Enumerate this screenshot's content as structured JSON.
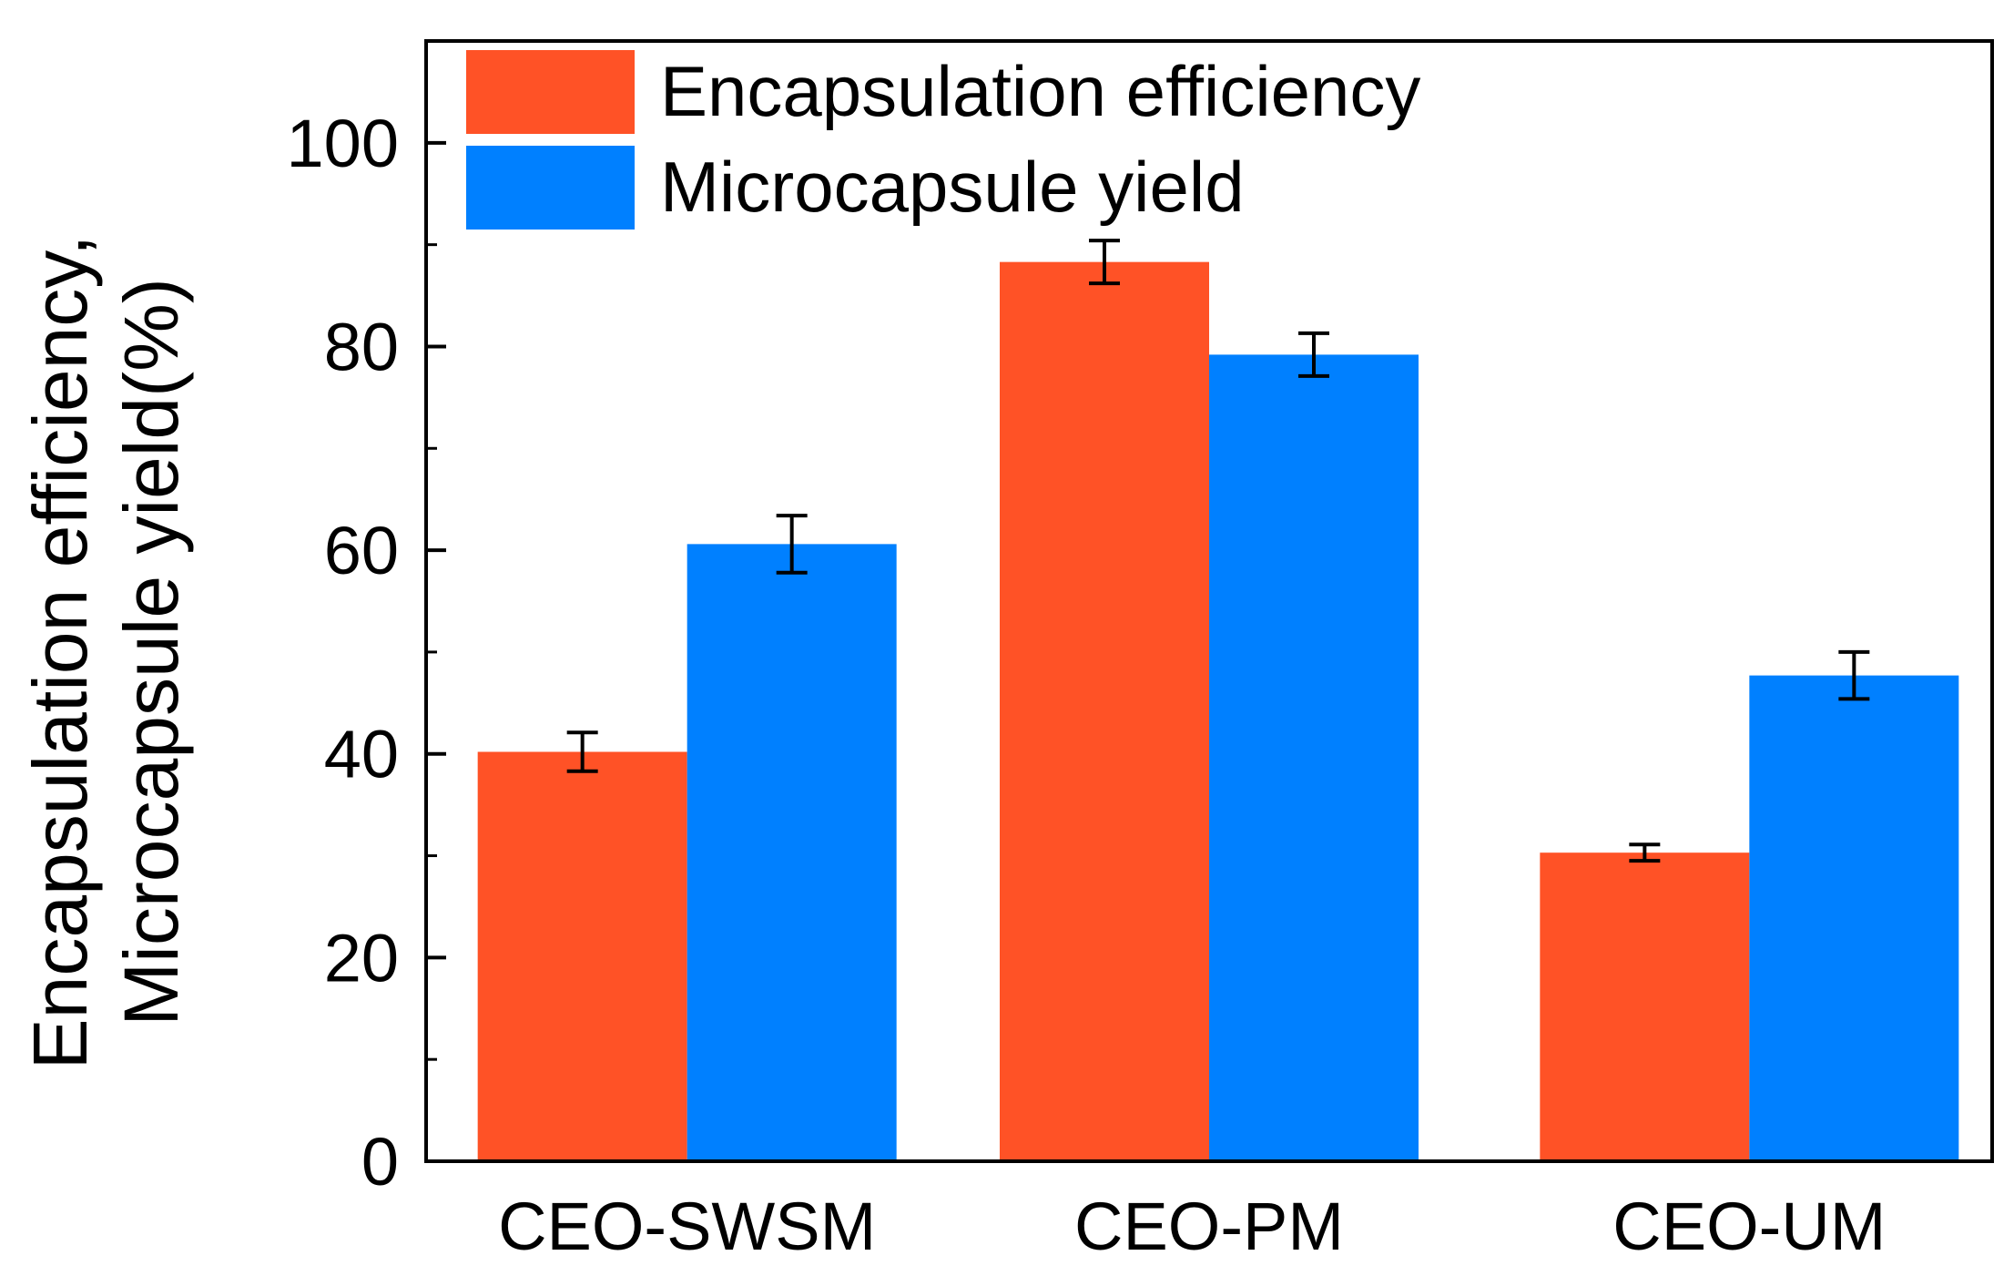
{
  "chart_data": {
    "type": "bar",
    "title": "",
    "xlabel": "",
    "ylabel_lines": [
      "Encapsulation efficiency,",
      "Microcapsule yield(%)"
    ],
    "categories": [
      "CEO-SWSM",
      "CEO-PM",
      "CEO-UM"
    ],
    "ylim": [
      0,
      110
    ],
    "yticks": [
      "0",
      "20",
      "40",
      "60",
      "80",
      "100"
    ],
    "ytick_values": [
      0,
      20,
      40,
      60,
      80,
      100
    ],
    "yminor_values": [
      10,
      30,
      50,
      70,
      90
    ],
    "grid": false,
    "legend_position": "top-left",
    "series": [
      {
        "name": "Encapsulation efficiency",
        "color": "#ff5226",
        "values": [
          40.2,
          88.3,
          30.3
        ],
        "errors": [
          1.9,
          2.1,
          0.8
        ]
      },
      {
        "name": "Microcapsule yield",
        "color": "#0080ff",
        "values": [
          60.6,
          79.2,
          47.7
        ],
        "errors": [
          2.8,
          2.1,
          2.3
        ]
      }
    ]
  }
}
